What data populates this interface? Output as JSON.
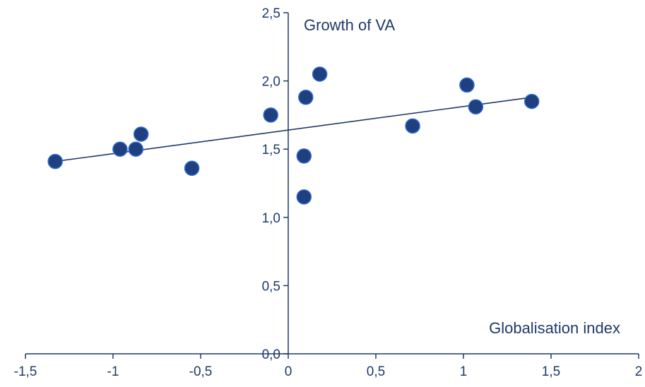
{
  "chart_data": {
    "type": "scatter",
    "title": "",
    "xlabel": "Globalisation index",
    "ylabel": "Growth of VA",
    "xlim": [
      -1.5,
      2
    ],
    "ylim": [
      0,
      2.5
    ],
    "x_ticks": [
      -1.5,
      -1,
      -0.5,
      0,
      0.5,
      1,
      1.5,
      2
    ],
    "x_tick_labels": [
      "-1,5",
      "-1",
      "-0,5",
      "0",
      "0,5",
      "1",
      "1,5",
      "2"
    ],
    "y_ticks": [
      0,
      0.5,
      1,
      1.5,
      2,
      2.5
    ],
    "y_tick_labels": [
      "0,0",
      "0,5",
      "1,0",
      "1,5",
      "2,0",
      "2,5"
    ],
    "grid": false,
    "legend": "none",
    "colors": {
      "marker": "#1f3f7f",
      "marker_edge": "#2d6ad2",
      "line": "#1f3a6a",
      "axis": "#1f3a6a"
    },
    "series": [
      {
        "points": [
          {
            "x": -1.33,
            "y": 1.41
          },
          {
            "x": -0.96,
            "y": 1.5
          },
          {
            "x": -0.87,
            "y": 1.5
          },
          {
            "x": -0.84,
            "y": 1.61
          },
          {
            "x": -0.55,
            "y": 1.36
          },
          {
            "x": -0.1,
            "y": 1.75
          },
          {
            "x": 0.09,
            "y": 1.45
          },
          {
            "x": 0.09,
            "y": 1.15
          },
          {
            "x": 0.1,
            "y": 1.88
          },
          {
            "x": 0.18,
            "y": 2.05
          },
          {
            "x": 0.71,
            "y": 1.67
          },
          {
            "x": 1.02,
            "y": 1.97
          },
          {
            "x": 1.07,
            "y": 1.81
          },
          {
            "x": 1.39,
            "y": 1.85
          }
        ]
      }
    ],
    "trendline": {
      "x_start": -1.33,
      "y_start": 1.41,
      "x_end": 1.39,
      "y_end": 1.88
    }
  }
}
